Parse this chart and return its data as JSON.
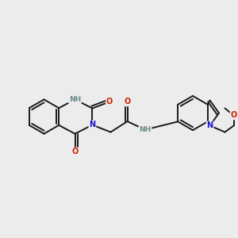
{
  "background_color": "#ececec",
  "bond_color": "#1a1a1a",
  "nitrogen_color": "#1414cc",
  "oxygen_color": "#cc2200",
  "hydrogen_color": "#6a8a8a",
  "figsize": [
    3.0,
    3.0
  ],
  "dpi": 100,
  "xlim": [
    0,
    10
  ],
  "ylim": [
    0,
    10
  ],
  "lw": 1.4,
  "fs": 7.0
}
